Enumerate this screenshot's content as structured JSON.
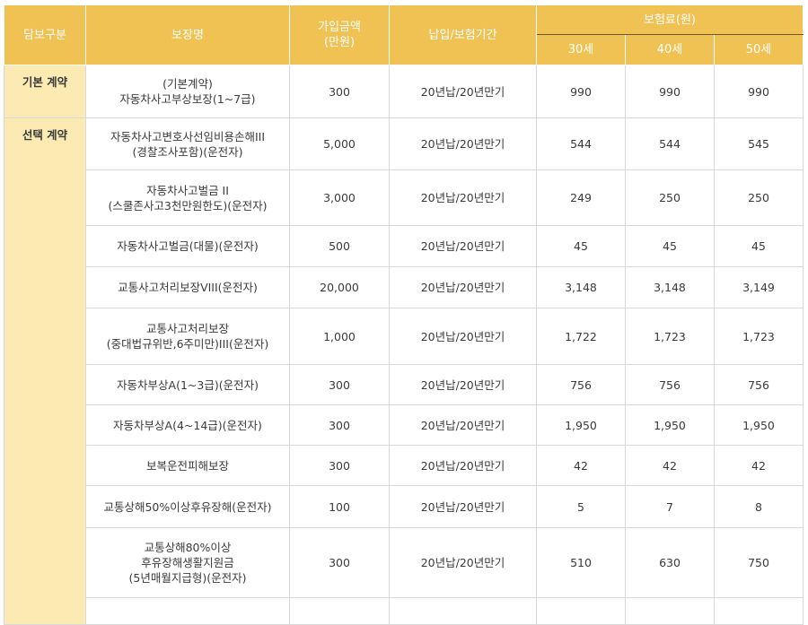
{
  "headers": {
    "category": "담보구분",
    "coverage": "보장명",
    "amount": "가입금액\n(만원)",
    "period": "납입/보험기간",
    "premium": "보험료(원)",
    "ages": [
      "30세",
      "40세",
      "50세"
    ]
  },
  "groups": [
    {
      "label": "기본 계약",
      "rows": [
        {
          "name": "(기본계약)\n자동차사고부상보장(1~7급)",
          "amount": "300",
          "period": "20년납/20년만기",
          "p30": "990",
          "p40": "990",
          "p50": "990"
        }
      ]
    },
    {
      "label": "선택 계약",
      "rows": [
        {
          "name": "자동차사고변호사선임비용손해III\n(경찰조사포함)(운전자)",
          "amount": "5,000",
          "period": "20년납/20년만기",
          "p30": "544",
          "p40": "544",
          "p50": "545"
        },
        {
          "name": "자동차사고벌금 II\n(스쿨존사고3천만원한도)(운전자)",
          "amount": "3,000",
          "period": "20년납/20년만기",
          "p30": "249",
          "p40": "250",
          "p50": "250"
        },
        {
          "name": "자동차사고벌금(대물)(운전자)",
          "amount": "500",
          "period": "20년납/20년만기",
          "p30": "45",
          "p40": "45",
          "p50": "45"
        },
        {
          "name": "교통사고처리보장VIII(운전자)",
          "amount": "20,000",
          "period": "20년납/20년만기",
          "p30": "3,148",
          "p40": "3,148",
          "p50": "3,149"
        },
        {
          "name": "교통사고처리보장\n(중대법규위반,6주미만)III(운전자)",
          "amount": "1,000",
          "period": "20년납/20년만기",
          "p30": "1,722",
          "p40": "1,723",
          "p50": "1,723"
        },
        {
          "name": "자동차부상A(1~3급)(운전자)",
          "amount": "300",
          "period": "20년납/20년만기",
          "p30": "756",
          "p40": "756",
          "p50": "756"
        },
        {
          "name": "자동차부상A(4~14급)(운전자)",
          "amount": "300",
          "period": "20년납/20년만기",
          "p30": "1,950",
          "p40": "1,950",
          "p50": "1,950"
        },
        {
          "name": "보복운전피해보장",
          "amount": "300",
          "period": "20년납/20년만기",
          "p30": "42",
          "p40": "42",
          "p50": "42"
        },
        {
          "name": "교통상해50%이상후유장해(운전자)",
          "amount": "100",
          "period": "20년납/20년만기",
          "p30": "5",
          "p40": "7",
          "p50": "8"
        },
        {
          "name": "교통상해80%이상\n후유장해생활지원금\n(5년매월지급형)(운전자)",
          "amount": "300",
          "period": "20년납/20년만기",
          "p30": "510",
          "p40": "630",
          "p50": "750"
        }
      ]
    }
  ]
}
